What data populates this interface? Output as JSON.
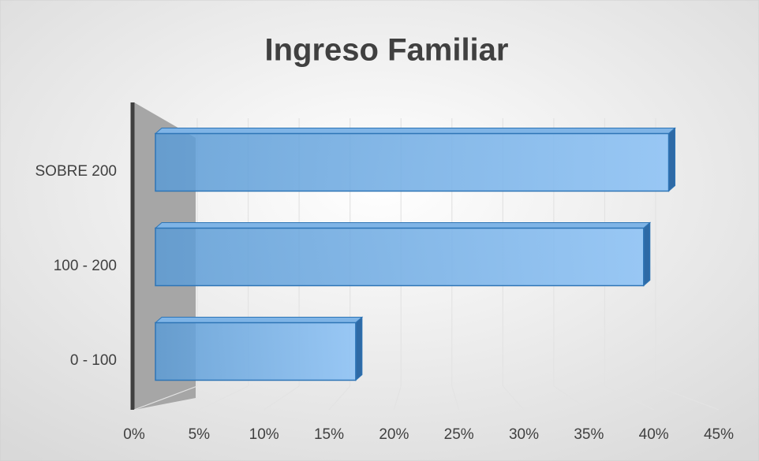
{
  "chart_data": {
    "type": "bar",
    "orientation": "horizontal",
    "title": "Ingreso Familiar",
    "categories": [
      "0 - 100",
      "100 - 200",
      "SOBRE 200"
    ],
    "values": [
      16,
      39,
      41
    ],
    "color": "#5b9bd5",
    "xlim": [
      0,
      45
    ],
    "xticks": [
      {
        "value": 0,
        "label": "0%"
      },
      {
        "value": 5,
        "label": "5%"
      },
      {
        "value": 10,
        "label": "10%"
      },
      {
        "value": 15,
        "label": "15%"
      },
      {
        "value": 20,
        "label": "20%"
      },
      {
        "value": 25,
        "label": "25%"
      },
      {
        "value": 30,
        "label": "30%"
      },
      {
        "value": 35,
        "label": "35%"
      },
      {
        "value": 40,
        "label": "40%"
      },
      {
        "value": 45,
        "label": "45%"
      }
    ],
    "grid": true
  }
}
